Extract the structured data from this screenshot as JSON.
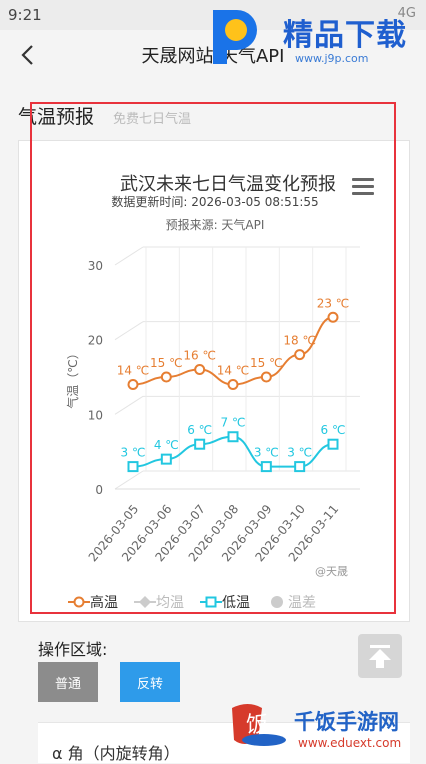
{
  "status": {
    "time": "9:21",
    "right": "4G"
  },
  "header": {
    "title": "天晟网站-天气API"
  },
  "watermark_top": {
    "text": "精品下载",
    "url": "www.j9p.com"
  },
  "section": {
    "title": "气温预报",
    "subtitle": "免费七日气温"
  },
  "chart_data": {
    "type": "line",
    "title": "武汉未来七日气温变化预报",
    "update_time": "数据更新时间:  2026-03-05 08:51:55",
    "source": "预报来源: 天气API",
    "ylabel": "气温（℃）",
    "ylim": [
      0,
      30
    ],
    "yticks": [
      "0",
      "10",
      "20",
      "30"
    ],
    "categories": [
      "2026-03-05",
      "2026-03-06",
      "2026-03-07",
      "2026-03-08",
      "2026-03-09",
      "2026-03-10",
      "2026-03-11"
    ],
    "series": [
      {
        "name": "高温",
        "color": "#e67e32",
        "values": [
          14,
          15,
          16,
          14,
          15,
          18,
          23
        ],
        "labels": [
          "14 ℃",
          "15 ℃",
          "16 ℃",
          "14 ℃",
          "15 ℃",
          "18 ℃",
          "23 ℃"
        ]
      },
      {
        "name": "低温",
        "color": "#22c7e0",
        "values": [
          3,
          4,
          6,
          7,
          3,
          3,
          6
        ],
        "labels": [
          "3 ℃",
          "4 ℃",
          "6 ℃",
          "7 ℃",
          "3 ℃",
          "3 ℃",
          "6 ℃"
        ]
      }
    ],
    "legend": [
      {
        "name": "高温",
        "color": "#e67e32",
        "marker": "circle",
        "active": true
      },
      {
        "name": "均温",
        "color": "#cccccc",
        "marker": "diamond",
        "active": false
      },
      {
        "name": "低温",
        "color": "#22c7e0",
        "marker": "square",
        "active": true
      },
      {
        "name": "温差",
        "color": "#cccccc",
        "marker": "dot",
        "active": false
      }
    ],
    "credit": "@天晟",
    "grid": true,
    "legend_position": "bottom"
  },
  "ops": {
    "label": "操作区域:",
    "normal": "普通",
    "reverse": "反转"
  },
  "bottom": {
    "text": "α 角（内旋转角）"
  },
  "watermark_bottom": {
    "text": "千饭手游网",
    "url": "www.eduext.com"
  },
  "colors": {
    "highlight": "#e8323c",
    "accent_blue": "#2e9bea"
  }
}
